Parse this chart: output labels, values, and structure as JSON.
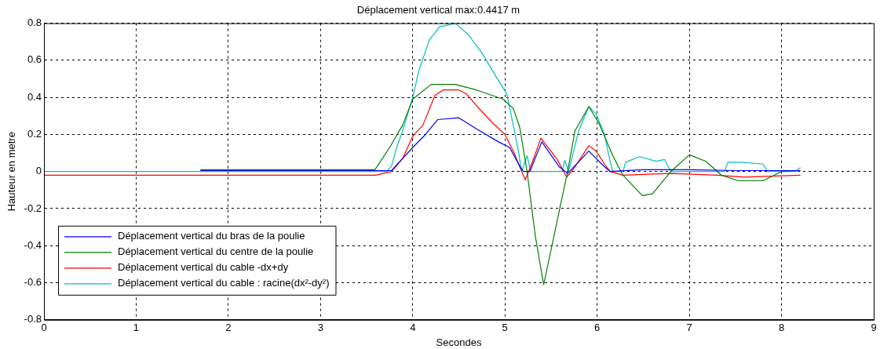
{
  "chart_data": {
    "type": "line",
    "title": "Déplacement vertical max:0.4417 m",
    "xlabel": "Secondes",
    "ylabel": "Hauteur en metre",
    "xlim": [
      0,
      9
    ],
    "xticks": [
      0,
      1,
      2,
      3,
      4,
      5,
      6,
      7,
      8,
      9
    ],
    "ylim": [
      -0.8,
      0.8
    ],
    "yticks": [
      -0.8,
      -0.6,
      -0.4,
      -0.2,
      0,
      0.2,
      0.4,
      0.6,
      0.8
    ],
    "grid": true,
    "legend": "bottom left",
    "marker": "none",
    "line_style": "solid",
    "series": [
      {
        "name": "Déplacement vertical du bras de la poulie",
        "color": "#0000ff",
        "x": [
          1.7,
          3.6,
          3.77,
          4.0,
          4.12,
          4.27,
          4.5,
          4.69,
          4.93,
          5.05,
          5.16,
          5.2,
          5.27,
          5.4,
          5.59,
          5.68,
          5.91,
          6.05,
          6.14,
          6.5,
          7.0,
          7.5,
          8.0,
          8.2
        ],
        "values": [
          0.005,
          0.005,
          0.005,
          0.13,
          0.19,
          0.28,
          0.29,
          0.23,
          0.16,
          0.13,
          0.03,
          0,
          0,
          0.16,
          0.025,
          -0.01,
          0.11,
          0.04,
          0,
          0.01,
          0.01,
          0.005,
          0.005,
          0.005
        ]
      },
      {
        "name": "Déplacement vertical du centre de la poulie",
        "color": "#008000",
        "x": [
          1.7,
          3.59,
          3.75,
          3.89,
          4.0,
          4.2,
          4.46,
          4.69,
          4.98,
          5.09,
          5.16,
          5.24,
          5.33,
          5.42,
          5.68,
          5.76,
          5.91,
          6.02,
          6.17,
          6.28,
          6.49,
          6.6,
          6.8,
          7.0,
          7.18,
          7.35,
          7.53,
          7.8,
          8.0,
          8.2
        ],
        "values": [
          0.01,
          0.01,
          0.13,
          0.25,
          0.39,
          0.47,
          0.47,
          0.44,
          0.39,
          0.34,
          0.24,
          0,
          -0.35,
          -0.61,
          0,
          0.22,
          0.35,
          0.26,
          0.085,
          -0.02,
          -0.13,
          -0.12,
          0,
          0.09,
          0.055,
          -0.02,
          -0.05,
          -0.05,
          0,
          0.005
        ]
      },
      {
        "name": "Déplacement vertical du cable -dx+dy",
        "color": "#ff0000",
        "x": [
          0,
          3.6,
          3.77,
          3.89,
          4.0,
          4.11,
          4.24,
          4.33,
          4.5,
          4.58,
          4.7,
          4.87,
          5.0,
          5.1,
          5.16,
          5.22,
          5.3,
          5.39,
          5.56,
          5.67,
          5.76,
          5.91,
          5.99,
          6.08,
          6.14,
          6.28,
          6.8,
          7.3,
          7.6,
          8.2
        ],
        "values": [
          -0.02,
          -0.02,
          0,
          0.07,
          0.19,
          0.25,
          0.41,
          0.44,
          0.44,
          0.42,
          0.35,
          0.26,
          0.2,
          0.1,
          0.025,
          -0.045,
          0.055,
          0.18,
          0.07,
          -0.03,
          0.025,
          0.14,
          0.11,
          0.04,
          0,
          -0.02,
          -0.01,
          -0.02,
          -0.03,
          -0.02
        ]
      },
      {
        "name": "Déplacement vertical du cable : racine(dx²-dy²)",
        "color": "#00bfbf",
        "x": [
          0,
          3.72,
          3.77,
          3.82,
          3.89,
          4.0,
          4.07,
          4.18,
          4.29,
          4.46,
          4.6,
          4.75,
          4.93,
          5.02,
          5.09,
          5.15,
          5.18,
          5.24,
          5.28,
          5.62,
          5.65,
          5.69,
          5.8,
          5.91,
          5.99,
          6.08,
          6.14,
          6.17,
          6.28,
          6.31,
          6.46,
          6.64,
          6.73,
          6.8,
          7.38,
          7.42,
          7.57,
          7.8,
          7.85,
          8.15,
          8.2
        ],
        "values": [
          0,
          0,
          0.03,
          0.12,
          0.22,
          0.4,
          0.55,
          0.71,
          0.78,
          0.8,
          0.74,
          0.64,
          0.49,
          0.42,
          0.25,
          0.1,
          0,
          0.085,
          0,
          0,
          0.06,
          0,
          0.22,
          0.35,
          0.31,
          0.2,
          0.055,
          0,
          0,
          0.05,
          0.08,
          0.055,
          0.065,
          0,
          0,
          0.05,
          0.05,
          0.04,
          0,
          0,
          0.02
        ]
      }
    ]
  }
}
